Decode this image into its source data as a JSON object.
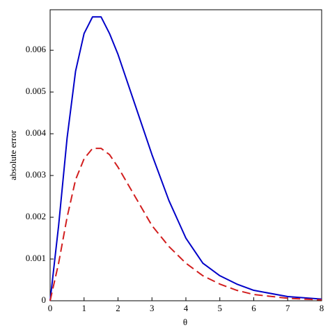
{
  "chart_data": {
    "type": "line",
    "x_label": "θ",
    "y_label": "absolute error",
    "x": [
      0,
      0.25,
      0.5,
      0.75,
      1,
      1.25,
      1.5,
      1.75,
      2,
      2.5,
      3,
      3.5,
      4,
      4.5,
      5,
      5.5,
      6,
      7,
      8
    ],
    "series": [
      {
        "color": "#0000c8",
        "dash": false,
        "values": [
          0,
          0.0018,
          0.0039,
          0.0055,
          0.0064,
          0.0068,
          0.0068,
          0.0064,
          0.0059,
          0.0047,
          0.0035,
          0.0024,
          0.0015,
          0.0009,
          0.0006,
          0.0004,
          0.00025,
          0.0001,
          4e-05
        ]
      },
      {
        "color": "#d21e1e",
        "dash": true,
        "values": [
          0,
          0.0009,
          0.002,
          0.0029,
          0.0034,
          0.00365,
          0.00365,
          0.0035,
          0.0032,
          0.0025,
          0.0018,
          0.0013,
          0.0009,
          0.0006,
          0.0004,
          0.00025,
          0.00015,
          6e-05,
          2e-05
        ]
      }
    ],
    "xlim": [
      0,
      8
    ],
    "xticks": [
      0,
      1,
      2,
      3,
      4,
      5,
      6,
      7,
      8
    ],
    "ylim": [
      0,
      0.00697
    ],
    "yticks": [
      0,
      0.001,
      0.002,
      0.003,
      0.004,
      0.005,
      0.006
    ],
    "grid": false
  }
}
